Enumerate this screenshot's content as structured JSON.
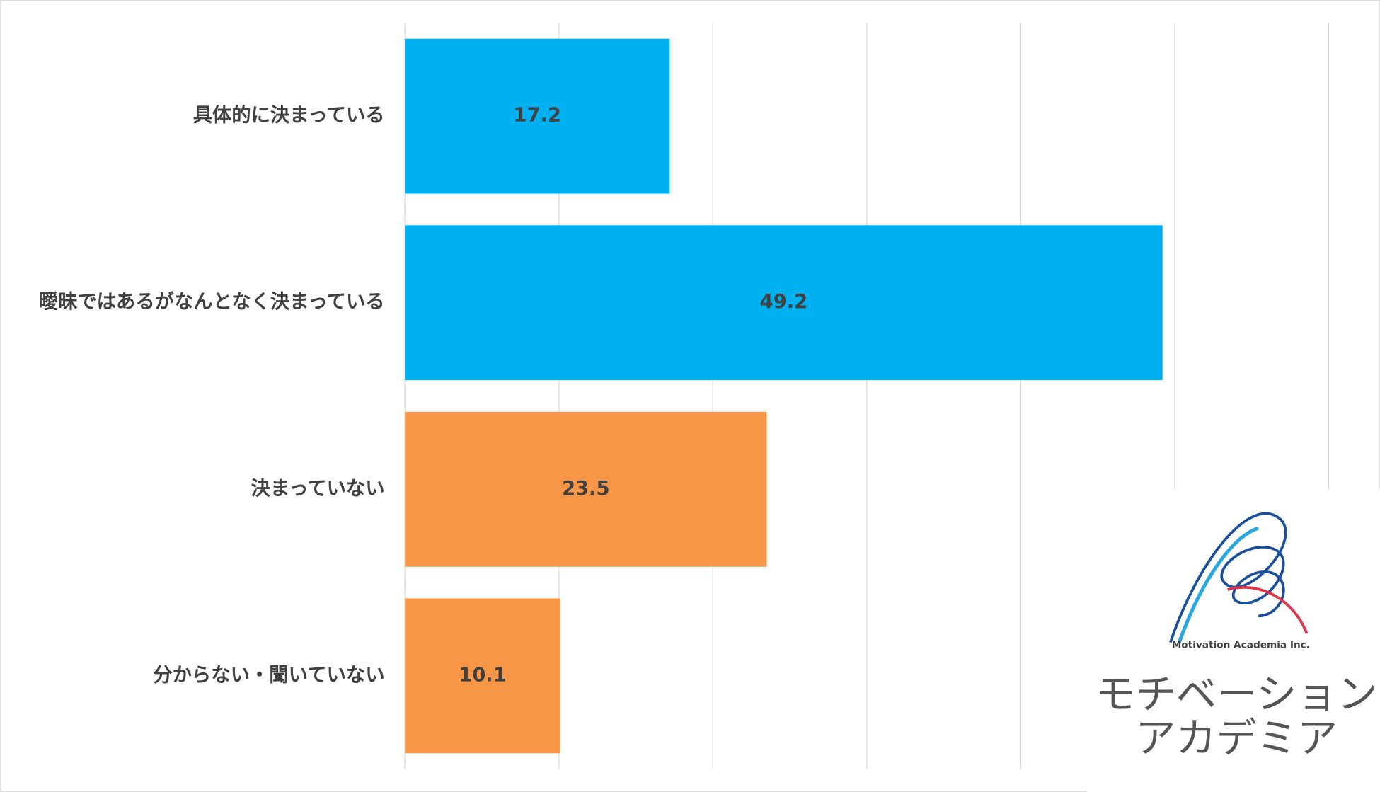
{
  "chart_data": {
    "type": "hbar",
    "categories": [
      "具体的に決まっている",
      "曖昧ではあるがなんとなく決まっている",
      "決まっていない",
      "分からない・聞いていない"
    ],
    "values": [
      17.2,
      49.2,
      23.5,
      10.1
    ],
    "colors": [
      "#00b0f0",
      "#00b0f0",
      "#f79646",
      "#f79646"
    ],
    "xlim": [
      0,
      60
    ],
    "xticks": [
      0,
      10,
      20,
      30,
      40,
      50,
      60
    ],
    "grid": true,
    "tick_labels": false
  },
  "logo": {
    "tagline": "Motivation Academia Inc.",
    "name_line1": "モチベーション",
    "name_line2": "アカデミア"
  }
}
